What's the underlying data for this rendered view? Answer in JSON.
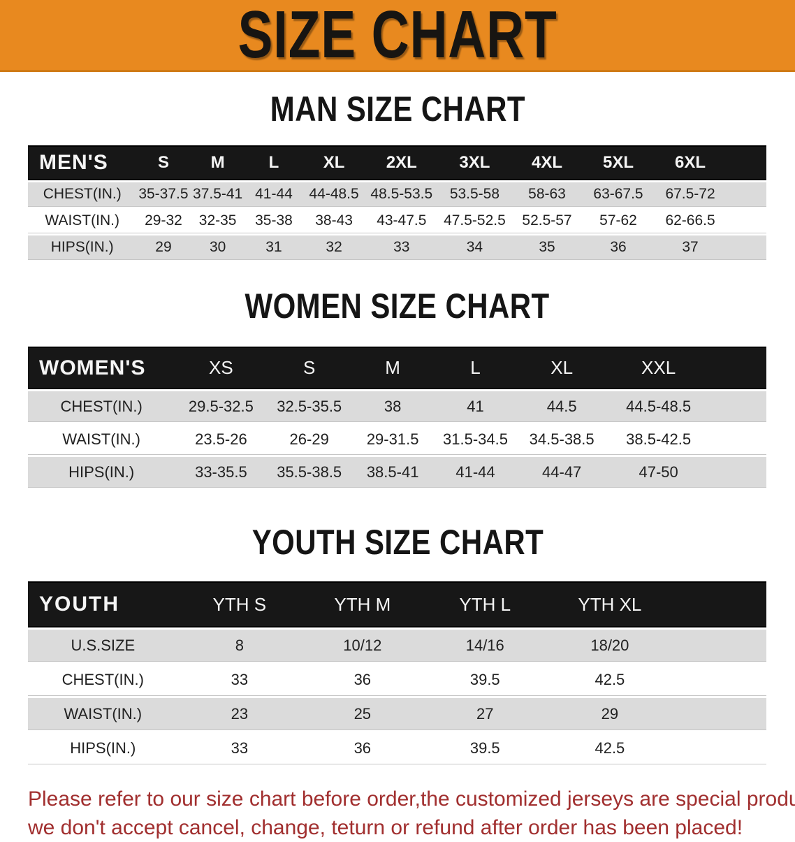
{
  "banner": {
    "title": "SIZE CHART"
  },
  "colors": {
    "banner_bg": "#E8891F",
    "header_bar_bg": "#171717",
    "row_gray_bg": "#DBDBDB",
    "footer_text": "#A12F2F"
  },
  "sections": [
    {
      "heading": "MAN SIZE CHART",
      "table": {
        "header_label": "MEN'S",
        "columns": [
          "S",
          "M",
          "L",
          "XL",
          "2XL",
          "3XL",
          "4XL",
          "5XL",
          "6XL"
        ],
        "rows": [
          {
            "label": "CHEST(IN.)",
            "values": [
              "35-37.5",
              "37.5-41",
              "41-44",
              "44-48.5",
              "48.5-53.5",
              "53.5-58",
              "58-63",
              "63-67.5",
              "67.5-72"
            ]
          },
          {
            "label": "WAIST(IN.)",
            "values": [
              "29-32",
              "32-35",
              "35-38",
              "38-43",
              "43-47.5",
              "47.5-52.5",
              "52.5-57",
              "57-62",
              "62-66.5"
            ]
          },
          {
            "label": "HIPS(IN.)",
            "values": [
              "29",
              "30",
              "31",
              "32",
              "33",
              "34",
              "35",
              "36",
              "37"
            ]
          }
        ]
      }
    },
    {
      "heading": "WOMEN SIZE CHART",
      "table": {
        "header_label": "WOMEN'S",
        "columns": [
          "XS",
          "S",
          "M",
          "L",
          "XL",
          "XXL"
        ],
        "rows": [
          {
            "label": "CHEST(IN.)",
            "values": [
              "29.5-32.5",
              "32.5-35.5",
              "38",
              "41",
              "44.5",
              "44.5-48.5"
            ]
          },
          {
            "label": "WAIST(IN.)",
            "values": [
              "23.5-26",
              "26-29",
              "29-31.5",
              "31.5-34.5",
              "34.5-38.5",
              "38.5-42.5"
            ]
          },
          {
            "label": "HIPS(IN.)",
            "values": [
              "33-35.5",
              "35.5-38.5",
              "38.5-41",
              "41-44",
              "44-47",
              "47-50"
            ]
          }
        ]
      }
    },
    {
      "heading": "YOUTH SIZE CHART",
      "table": {
        "header_label": "YOUTH",
        "columns": [
          "YTH S",
          "YTH M",
          "YTH L",
          "YTH XL"
        ],
        "rows": [
          {
            "label": "U.S.SIZE",
            "values": [
              "8",
              "10/12",
              "14/16",
              "18/20"
            ]
          },
          {
            "label": "CHEST(IN.)",
            "values": [
              "33",
              "36",
              "39.5",
              "42.5"
            ]
          },
          {
            "label": "WAIST(IN.)",
            "values": [
              "23",
              "25",
              "27",
              "29"
            ]
          },
          {
            "label": "HIPS(IN.)",
            "values": [
              "33",
              "36",
              "39.5",
              "42.5"
            ]
          }
        ]
      }
    }
  ],
  "footer": {
    "line1": "Please refer to our size chart before order,the customized jerseys are special products,",
    "line2": "we don't accept cancel, change, teturn or refund after order has been placed!"
  }
}
